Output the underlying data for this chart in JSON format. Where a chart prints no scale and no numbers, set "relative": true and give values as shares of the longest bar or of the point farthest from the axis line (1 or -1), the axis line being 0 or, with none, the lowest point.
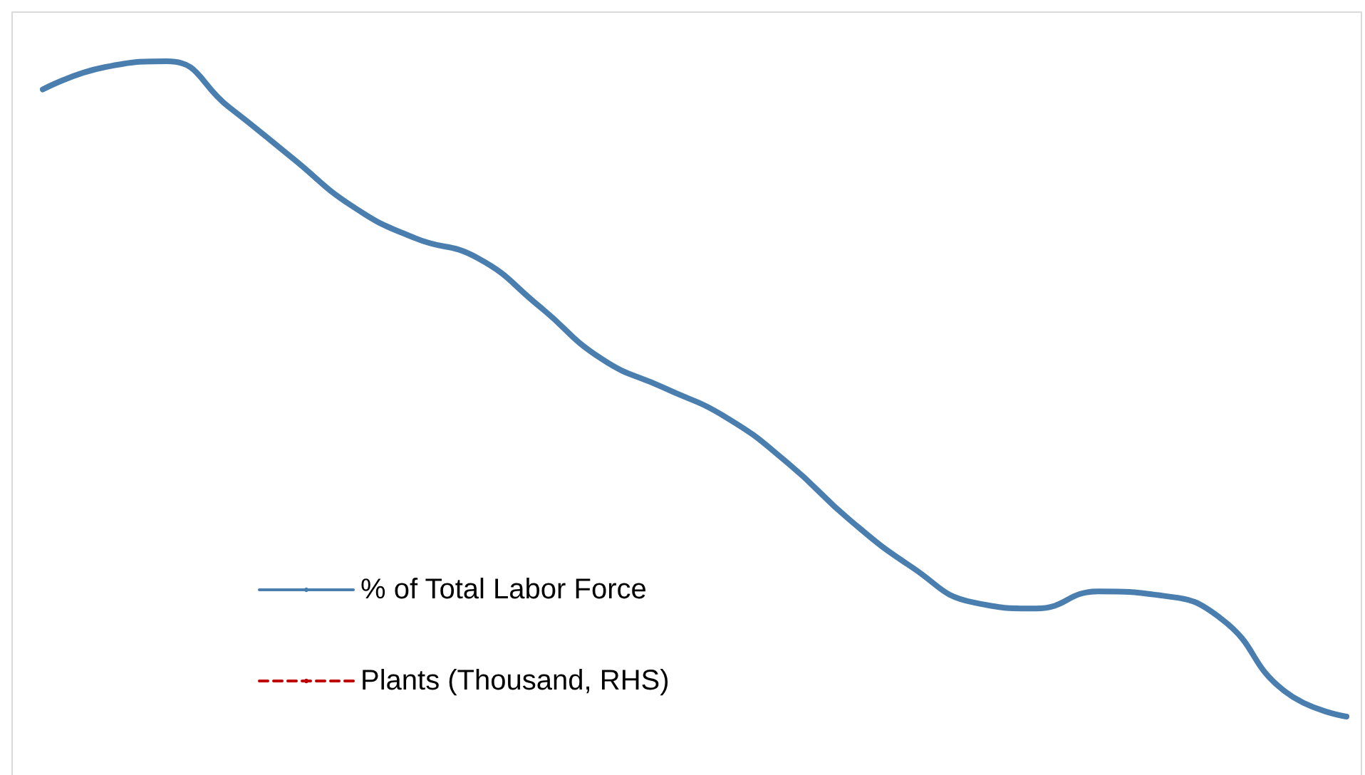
{
  "chart_data": {
    "type": "line",
    "relative": true,
    "marker": "none",
    "legend": "bottom left",
    "categories": [
      null,
      null,
      null,
      null,
      null,
      null,
      null,
      null,
      null,
      null,
      null,
      null,
      null,
      null,
      null,
      null,
      null,
      null,
      null,
      null,
      null,
      null
    ],
    "series": [
      {
        "name": "% of Total Labor Force",
        "color": "#4a7eaf",
        "line_style": "solid",
        "values": [
          0.957,
          0.991,
          1,
          0.93,
          0.854,
          0.778,
          0.73,
          0.7,
          0.626,
          0.546,
          0.502,
          0.457,
          0.387,
          0.3,
          0.228,
          0.174,
          0.165,
          0.191,
          0.185,
          0.148,
          0.039,
          0
        ]
      },
      {
        "name": "Plants (Thousand, RHS)",
        "color": "#c00000",
        "line_style": "dashed",
        "values": [
          null,
          null,
          null,
          null,
          null,
          null,
          null,
          null,
          null,
          null,
          null,
          null,
          null,
          null,
          null,
          null,
          null,
          null,
          null,
          null,
          null,
          null
        ]
      }
    ]
  }
}
